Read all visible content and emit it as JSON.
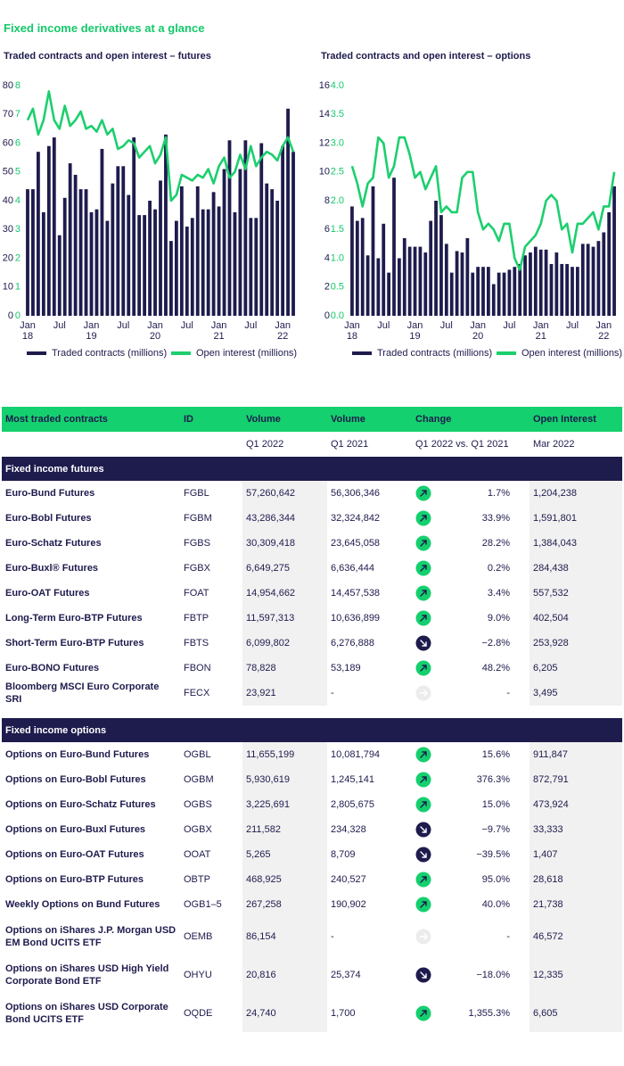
{
  "title": "Fixed income derivatives at a glance",
  "chart_data": [
    {
      "type": "combo",
      "title": "Traded contracts and open interest – futures",
      "categories": [
        "Jan 18",
        null,
        null,
        null,
        null,
        null,
        "Jul",
        null,
        null,
        null,
        null,
        null,
        "Jan 19",
        null,
        null,
        null,
        null,
        null,
        "Jul",
        null,
        null,
        null,
        null,
        null,
        "Jan 20",
        null,
        null,
        null,
        null,
        null,
        "Jul",
        null,
        null,
        null,
        null,
        null,
        "Jan 21",
        null,
        null,
        null,
        null,
        null,
        "Jul",
        null,
        null,
        null,
        null,
        null,
        "Jan 22",
        null,
        null
      ],
      "ylim": [
        0,
        80
      ],
      "yticks": [
        0,
        10,
        20,
        30,
        40,
        50,
        60,
        70,
        80
      ],
      "y2lim": [
        0,
        8
      ],
      "y2ticks": [
        0,
        1,
        2,
        3,
        4,
        5,
        6,
        7,
        8
      ],
      "grid": false,
      "series": [
        {
          "name": "Traded contracts (millions)",
          "type": "bar",
          "color": "#1e1b4d",
          "values": [
            44,
            44,
            57,
            36,
            59,
            62,
            28,
            41,
            53,
            49,
            44,
            44,
            36,
            37,
            58,
            33,
            46,
            52,
            52,
            42,
            62,
            35,
            35,
            40,
            37,
            47,
            63,
            26,
            33,
            45,
            31,
            34,
            45,
            37,
            37,
            43,
            38,
            51,
            61,
            36,
            51,
            61,
            34,
            34,
            60,
            46,
            44,
            40,
            59,
            72,
            57
          ]
        },
        {
          "name": "Open interest (millions)",
          "type": "line",
          "axis": "y2",
          "color": "#1ccf6e",
          "values": [
            6.8,
            7.2,
            6.3,
            6.8,
            7.8,
            6.8,
            6.5,
            7.3,
            6.6,
            6.8,
            7.1,
            6.5,
            6.6,
            6.4,
            6.8,
            6.3,
            6.5,
            5.8,
            5.9,
            6.1,
            6.0,
            5.5,
            5.7,
            5.9,
            5.3,
            5.6,
            6.2,
            4.0,
            4.2,
            4.9,
            4.8,
            4.7,
            4.9,
            4.8,
            5.1,
            4.6,
            5.2,
            5.5,
            4.8,
            5.0,
            5.6,
            5.1,
            5.9,
            5.2,
            5.5,
            5.7,
            5.6,
            5.4,
            5.9,
            6.2,
            5.7
          ]
        }
      ]
    },
    {
      "type": "combo",
      "title": "Traded contracts and open interest – options",
      "categories": [
        "Jan 18",
        null,
        null,
        null,
        null,
        null,
        "Jul",
        null,
        null,
        null,
        null,
        null,
        "Jan 19",
        null,
        null,
        null,
        null,
        null,
        "Jul",
        null,
        null,
        null,
        null,
        null,
        "Jan 20",
        null,
        null,
        null,
        null,
        null,
        "Jul",
        null,
        null,
        null,
        null,
        null,
        "Jan 21",
        null,
        null,
        null,
        null,
        null,
        "Jul",
        null,
        null,
        null,
        null,
        null,
        "Jan 22",
        null,
        null
      ],
      "ylim": [
        0,
        16
      ],
      "yticks": [
        0,
        2,
        4,
        6,
        8,
        10,
        12,
        14,
        16
      ],
      "y2lim": [
        0,
        4
      ],
      "y2ticks": [
        {
          "value": 0,
          "label": "0.0"
        },
        0.5,
        {
          "value": 1,
          "label": "1.0"
        },
        1.5,
        {
          "value": 2,
          "label": "2.0"
        },
        2.5,
        {
          "value": 3,
          "label": "3.0"
        },
        3.5,
        {
          "value": 4,
          "label": "4.0"
        }
      ],
      "grid": false,
      "series": [
        {
          "name": "Traded contracts (millions)",
          "type": "bar",
          "color": "#1e1b4d",
          "values": [
            7.6,
            6.6,
            6.8,
            4.2,
            9.0,
            4.0,
            6.4,
            3.0,
            9.6,
            4.0,
            5.4,
            4.8,
            4.8,
            4.8,
            4.4,
            6.6,
            8.0,
            7.0,
            5.0,
            3.0,
            4.5,
            4.4,
            5.4,
            3.0,
            3.4,
            3.4,
            3.4,
            2.2,
            3.0,
            3.0,
            3.2,
            3.4,
            3.6,
            4.2,
            4.4,
            4.8,
            4.6,
            4.6,
            3.6,
            4.4,
            3.6,
            3.6,
            3.4,
            3.4,
            5.0,
            5.0,
            4.8,
            5.2,
            5.8,
            7.2,
            9.0
          ]
        },
        {
          "name": "Open interest (millions)",
          "type": "line",
          "axis": "y2",
          "color": "#1ccf6e",
          "values": [
            2.6,
            2.3,
            1.9,
            2.3,
            2.4,
            3.1,
            3.0,
            2.4,
            2.6,
            3.1,
            3.1,
            2.8,
            2.4,
            2.5,
            2.2,
            2.4,
            2.6,
            1.8,
            1.9,
            1.8,
            1.8,
            2.4,
            2.5,
            2.5,
            1.8,
            1.5,
            1.6,
            1.5,
            1.3,
            1.6,
            1.6,
            1.0,
            0.8,
            1.2,
            1.3,
            1.4,
            1.6,
            2.0,
            2.1,
            2.0,
            1.5,
            1.6,
            1.1,
            1.6,
            1.6,
            1.7,
            1.8,
            1.5,
            1.9,
            1.9,
            2.5
          ]
        }
      ]
    }
  ],
  "table": {
    "header": [
      "Most traded contracts",
      "ID",
      "Volume",
      "Volume",
      "Change",
      "Open Interest"
    ],
    "subheader": [
      "Q1 2022",
      "Q1 2021",
      "Q1 2022 vs. Q1 2021",
      "Mar 2022"
    ],
    "sections": [
      {
        "title": "Fixed income futures",
        "rows": [
          [
            "Euro-Bund Futures",
            "FGBL",
            "57,260,642",
            "56,306,346",
            "1.7%",
            "1,204,238"
          ],
          [
            "Euro-Bobl Futures",
            "FGBM",
            "43,286,344",
            "32,324,842",
            "33.9%",
            "1,591,801"
          ],
          [
            "Euro-Schatz Futures",
            "FGBS",
            "30,309,418",
            "23,645,058",
            "28.2%",
            "1,384,043"
          ],
          [
            "Euro-Buxl® Futures",
            "FGBX",
            "6,649,275",
            "6,636,444",
            "0.2%",
            "284,438"
          ],
          [
            "Euro-OAT Futures",
            "FOAT",
            "14,954,662",
            "14,457,538",
            "3.4%",
            "557,532"
          ],
          [
            "Long-Term Euro-BTP Futures",
            "FBTP",
            "11,597,313",
            "10,636,899",
            "9.0%",
            "402,504"
          ],
          [
            "Short-Term Euro-BTP Futures",
            "FBTS",
            "6,099,802",
            "6,276,888",
            "−2.8%",
            "253,928"
          ],
          [
            "Euro-BONO Futures",
            "FBON",
            "78,828",
            "53,189",
            "48.2%",
            "6,205"
          ],
          [
            "Bloomberg MSCI Euro Corporate SRI",
            "FECX",
            "23,921",
            "-",
            "-",
            "3,495"
          ]
        ]
      },
      {
        "title": "Fixed income options",
        "rows": [
          [
            "Options on Euro-Bund Futures",
            "OGBL",
            "11,655,199",
            "10,081,794",
            "15.6%",
            "911,847"
          ],
          [
            "Options on Euro-Bobl Futures",
            "OGBM",
            "5,930,619",
            "1,245,141",
            "376.3%",
            "872,791"
          ],
          [
            "Options on Euro-Schatz Futures",
            "OGBS",
            "3,225,691",
            "2,805,675",
            "15.0%",
            "473,924"
          ],
          [
            "Options on Euro-Buxl Futures",
            "OGBX",
            "211,582",
            "234,328",
            "−9.7%",
            "33,333"
          ],
          [
            "Options on Euro-OAT Futures",
            "OOAT",
            "5,265",
            "8,709",
            "−39.5%",
            "1,407"
          ],
          [
            "Options on Euro-BTP Futures",
            "OBTP",
            "468,925",
            "240,527",
            "95.0%",
            "28,618"
          ],
          [
            "Weekly Options on Bund Futures",
            "OGB1–5",
            "267,258",
            "190,902",
            "40.0%",
            "21,738"
          ],
          [
            "Options on iShares J.P. Morgan USD EM Bond UCITS ETF",
            "OEMB",
            "86,154",
            "-",
            "-",
            "46,572"
          ],
          [
            "Options on iShares USD High Yield Corporate Bond ETF",
            "OHYU",
            "20,816",
            "25,374",
            "−18.0%",
            "12,335"
          ],
          [
            "Options on iShares USD Corporate Bond UCITS ETF",
            "OQDE",
            "24,740",
            "1,700",
            "1,355.3%",
            "6,605"
          ]
        ]
      }
    ]
  }
}
